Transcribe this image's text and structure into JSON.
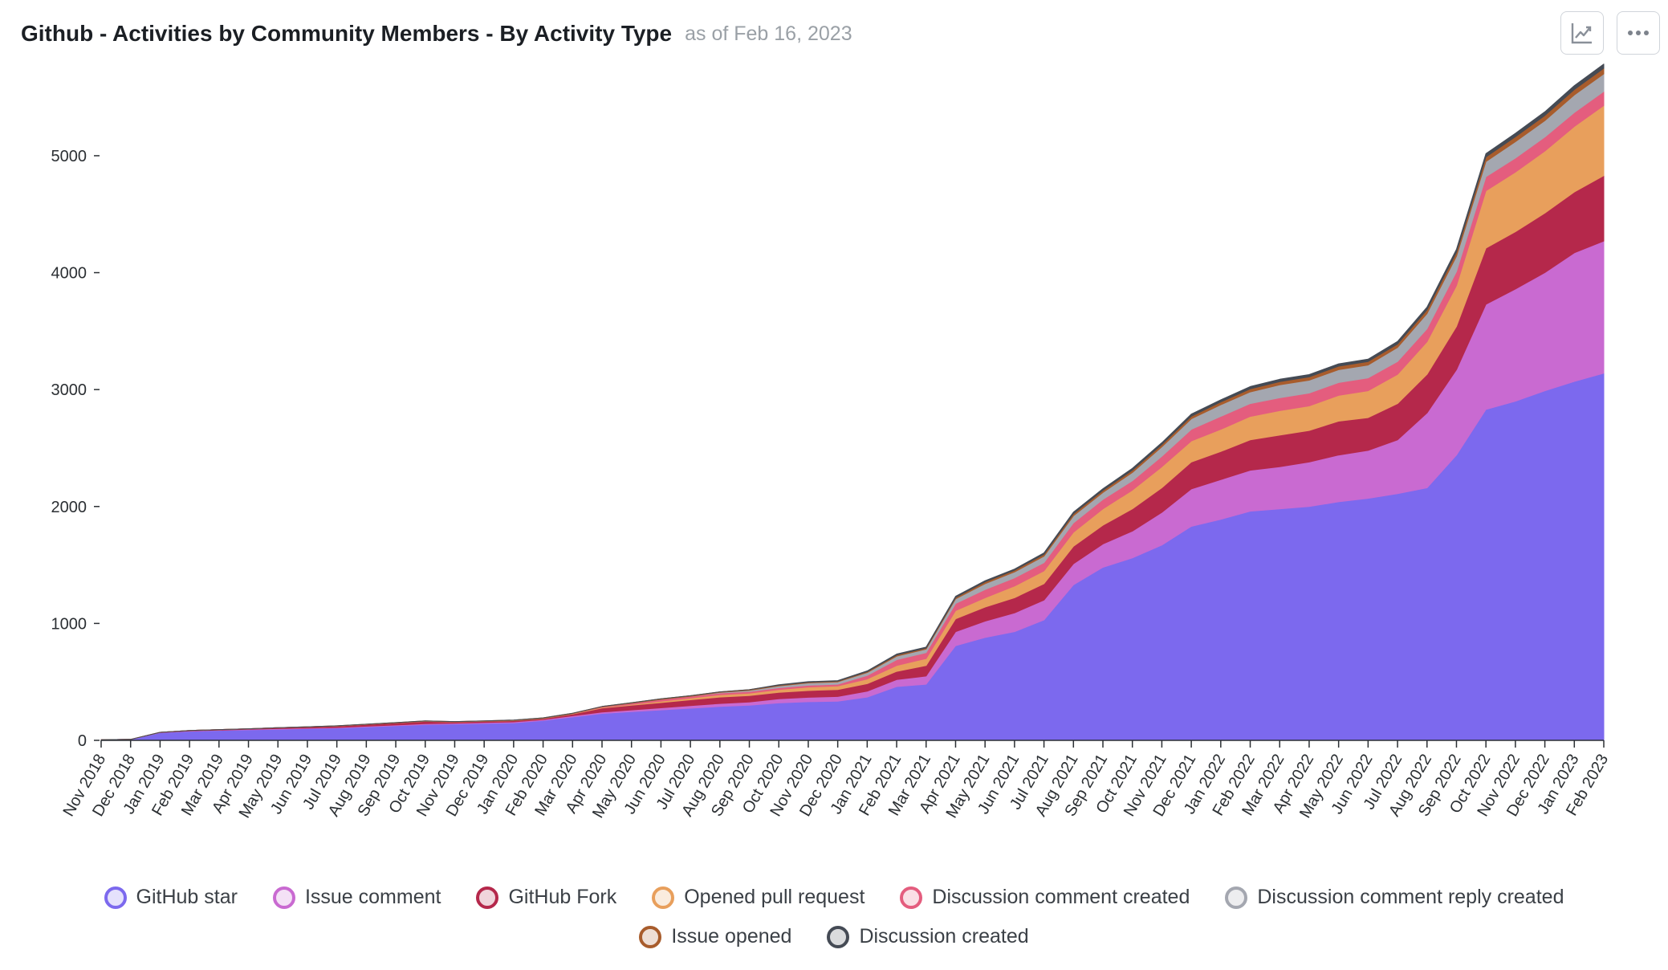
{
  "header": {
    "title": "Github - Activities by Community Members - By Activity Type",
    "as_of": "as of Feb 16, 2023"
  },
  "toolbar": {
    "chart_type_icon": "line-chart-icon",
    "more_icon": "more-horizontal-icon"
  },
  "chart_data": {
    "type": "area",
    "stacked": true,
    "title": "Github - Activities by Community Members - By Activity Type",
    "xlabel": "",
    "ylabel": "",
    "ylim": [
      0,
      5700
    ],
    "yticks": [
      0,
      1000,
      2000,
      3000,
      4000,
      5000
    ],
    "grid": false,
    "legend_position": "bottom",
    "categories": [
      "Nov 2018",
      "Dec 2018",
      "Jan 2019",
      "Feb 2019",
      "Mar 2019",
      "Apr 2019",
      "May 2019",
      "Jun 2019",
      "Jul 2019",
      "Aug 2019",
      "Sep 2019",
      "Oct 2019",
      "Nov 2019",
      "Dec 2019",
      "Jan 2020",
      "Feb 2020",
      "Mar 2020",
      "Apr 2020",
      "May 2020",
      "Jun 2020",
      "Jul 2020",
      "Aug 2020",
      "Sep 2020",
      "Oct 2020",
      "Nov 2020",
      "Dec 2020",
      "Jan 2021",
      "Feb 2021",
      "Mar 2021",
      "Apr 2021",
      "May 2021",
      "Jun 2021",
      "Jul 2021",
      "Aug 2021",
      "Sep 2021",
      "Oct 2021",
      "Nov 2021",
      "Dec 2021",
      "Jan 2022",
      "Feb 2022",
      "Mar 2022",
      "Apr 2022",
      "May 2022",
      "Jun 2022",
      "Jul 2022",
      "Aug 2022",
      "Sep 2022",
      "Oct 2022",
      "Nov 2022",
      "Dec 2022",
      "Jan 2023",
      "Feb 2023"
    ],
    "series": [
      {
        "name": "GitHub star",
        "color": "#7c69ee",
        "values": [
          5,
          8,
          65,
          78,
          85,
          90,
          95,
          100,
          105,
          115,
          125,
          135,
          140,
          145,
          150,
          170,
          200,
          230,
          245,
          260,
          275,
          290,
          300,
          320,
          330,
          335,
          370,
          460,
          480,
          810,
          880,
          930,
          1030,
          1330,
          1480,
          1560,
          1670,
          1830,
          1890,
          1960,
          1980,
          2000,
          2040,
          2070,
          2110,
          2160,
          2440,
          2830,
          2900,
          2990,
          3070,
          3140
        ]
      },
      {
        "name": "Issue comment",
        "color": "#c96ad1",
        "values": [
          0,
          0,
          2,
          3,
          3,
          4,
          5,
          5,
          5,
          6,
          6,
          7,
          7,
          8,
          8,
          8,
          10,
          12,
          15,
          18,
          22,
          25,
          28,
          35,
          38,
          40,
          50,
          60,
          70,
          120,
          140,
          160,
          170,
          180,
          200,
          230,
          280,
          320,
          340,
          350,
          360,
          380,
          400,
          410,
          460,
          640,
          730,
          900,
          960,
          1010,
          1100,
          1130
        ]
      },
      {
        "name": "GitHub Fork",
        "color": "#b5284b",
        "values": [
          0,
          0,
          2,
          3,
          4,
          5,
          8,
          10,
          12,
          15,
          18,
          20,
          10,
          10,
          10,
          8,
          15,
          35,
          40,
          45,
          50,
          55,
          55,
          55,
          58,
          60,
          65,
          70,
          90,
          110,
          120,
          130,
          140,
          150,
          160,
          190,
          210,
          230,
          240,
          260,
          270,
          270,
          290,
          280,
          310,
          330,
          370,
          480,
          490,
          510,
          520,
          560
        ]
      },
      {
        "name": "Opened pull request",
        "color": "#e89f5c",
        "values": [
          0,
          0,
          0,
          0,
          0,
          0,
          0,
          0,
          1,
          1,
          1,
          2,
          2,
          2,
          3,
          3,
          4,
          5,
          8,
          12,
          15,
          20,
          20,
          25,
          30,
          30,
          40,
          50,
          60,
          70,
          80,
          100,
          110,
          120,
          140,
          160,
          180,
          180,
          190,
          200,
          210,
          210,
          220,
          230,
          250,
          280,
          350,
          490,
          510,
          530,
          560,
          600
        ]
      },
      {
        "name": "Discussion comment created",
        "color": "#e45d7e",
        "values": [
          0,
          0,
          0,
          0,
          0,
          0,
          0,
          0,
          0,
          0,
          0,
          0,
          0,
          0,
          0,
          0,
          0,
          5,
          10,
          15,
          15,
          15,
          15,
          15,
          15,
          15,
          30,
          50,
          50,
          60,
          70,
          70,
          70,
          80,
          80,
          80,
          90,
          100,
          110,
          110,
          110,
          110,
          110,
          110,
          110,
          110,
          120,
          120,
          120,
          120,
          120,
          120
        ]
      },
      {
        "name": "Discussion comment reply created",
        "color": "#a4a7b0",
        "values": [
          0,
          0,
          0,
          0,
          0,
          0,
          0,
          0,
          0,
          0,
          0,
          0,
          0,
          0,
          0,
          0,
          0,
          0,
          0,
          0,
          0,
          5,
          10,
          15,
          20,
          20,
          25,
          30,
          30,
          40,
          50,
          50,
          55,
          60,
          60,
          70,
          80,
          90,
          100,
          100,
          110,
          110,
          110,
          110,
          120,
          130,
          130,
          130,
          140,
          140,
          150,
          150
        ]
      },
      {
        "name": "Issue opened",
        "color": "#a85c2c",
        "values": [
          0,
          0,
          0,
          0,
          0,
          0,
          0,
          1,
          1,
          1,
          2,
          2,
          2,
          2,
          3,
          3,
          3,
          3,
          4,
          5,
          5,
          5,
          5,
          6,
          6,
          6,
          8,
          10,
          10,
          12,
          15,
          15,
          16,
          18,
          18,
          20,
          20,
          22,
          24,
          26,
          28,
          28,
          30,
          30,
          30,
          32,
          35,
          40,
          42,
          44,
          46,
          48
        ]
      },
      {
        "name": "Discussion created",
        "color": "#454b55",
        "values": [
          0,
          0,
          0,
          0,
          0,
          0,
          0,
          0,
          0,
          0,
          0,
          0,
          0,
          0,
          0,
          0,
          0,
          0,
          0,
          0,
          0,
          0,
          0,
          5,
          5,
          5,
          6,
          8,
          8,
          10,
          10,
          10,
          12,
          14,
          14,
          16,
          16,
          18,
          18,
          20,
          20,
          20,
          20,
          20,
          22,
          24,
          26,
          28,
          30,
          32,
          34,
          36
        ]
      }
    ]
  }
}
